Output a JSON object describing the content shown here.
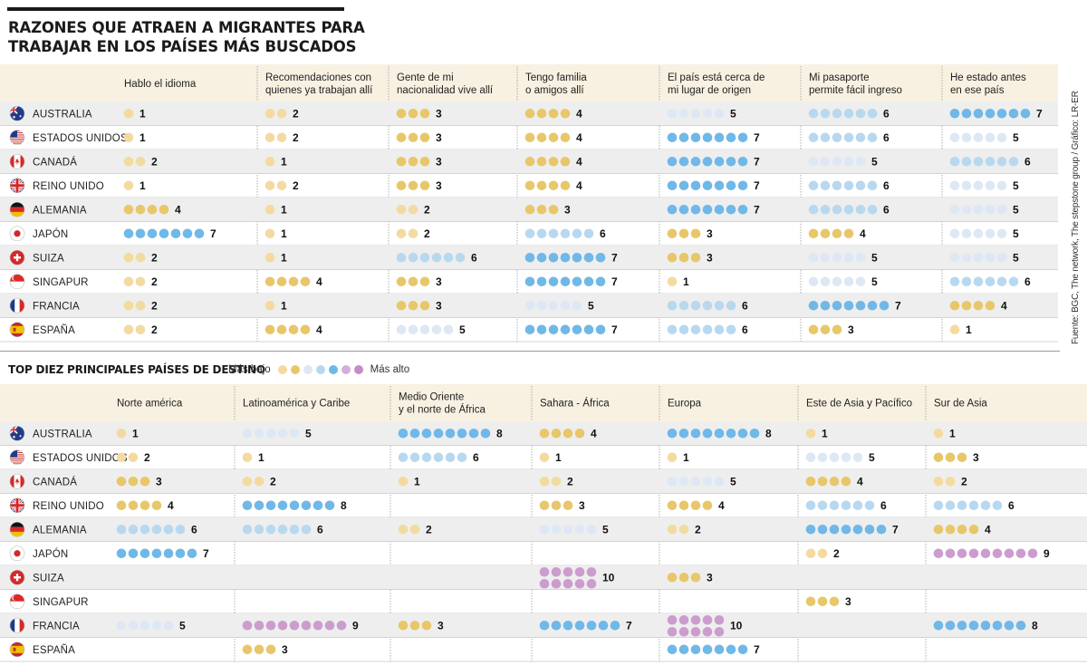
{
  "title_line1": "RAZONES QUE ATRAEN A MIGRANTES PARA",
  "title_line2": "TRABAJAR EN LOS PAÍSES MÁS BUSCADOS",
  "source": "Fuente: BGC, The network, The stepstone group / Gráfico: LR-ER",
  "section2_title": "TOP DIEZ PRINCIPALES PAÍSES DE DESTINO",
  "legend": {
    "low": "Más bajo",
    "high": "Más alto",
    "colors": [
      "#f3dba0",
      "#e8c76a",
      "#dde8f4",
      "#b8d8f0",
      "#6fb8e8",
      "#d4b0d8",
      "#c48cc8"
    ]
  },
  "colors": {
    "header_bg": "#f8f1e2",
    "row_bg": "#eeeeee",
    "yellow_light": "#f3dba0",
    "yellow": "#e8c76a",
    "blue_pale": "#dde8f4",
    "blue_light": "#b8d8f0",
    "blue": "#6fb8e8",
    "purple": "#cc9ccf"
  },
  "countries": [
    "AUSTRALIA",
    "ESTADOS UNIDOS",
    "CANADÁ",
    "REINO UNIDO",
    "ALEMANIA",
    "JAPÓN",
    "SUIZA",
    "SINGAPUR",
    "FRANCIA",
    "ESPAÑA"
  ],
  "country_flags": [
    "flag-australia-icon",
    "flag-usa-icon",
    "flag-canada-icon",
    "flag-uk-icon",
    "flag-germany-icon",
    "flag-japan-icon",
    "flag-switzerland-icon",
    "flag-singapore-icon",
    "flag-france-icon",
    "flag-spain-icon"
  ],
  "chart_data": [
    {
      "type": "table",
      "title": "RAZONES QUE ATRAEN A MIGRANTES PARA TRABAJAR EN LOS PAÍSES MÁS BUSCADOS",
      "columns": [
        [
          "Hablo el idioma"
        ],
        [
          "Recomendaciones con",
          "quienes ya trabajan allí"
        ],
        [
          "Gente de mi",
          "nacionalidad vive allí"
        ],
        [
          "Tengo familia",
          "o amigos allí"
        ],
        [
          "El país está cerca de",
          "mi lugar de origen"
        ],
        [
          "Mi pasaporte",
          "permite fácil ingreso"
        ],
        [
          "He estado antes",
          "en ese país"
        ]
      ],
      "rows": [
        "AUSTRALIA",
        "ESTADOS UNIDOS",
        "CANADÁ",
        "REINO UNIDO",
        "ALEMANIA",
        "JAPÓN",
        "SUIZA",
        "SINGAPUR",
        "FRANCIA",
        "ESPAÑA"
      ],
      "values": [
        [
          1,
          2,
          3,
          4,
          5,
          6,
          7
        ],
        [
          1,
          2,
          3,
          4,
          7,
          6,
          5
        ],
        [
          2,
          1,
          3,
          4,
          7,
          5,
          6
        ],
        [
          1,
          2,
          3,
          4,
          7,
          6,
          5
        ],
        [
          4,
          1,
          2,
          3,
          7,
          6,
          5
        ],
        [
          7,
          1,
          2,
          6,
          3,
          4,
          5
        ],
        [
          2,
          1,
          6,
          7,
          3,
          5,
          5
        ],
        [
          2,
          4,
          3,
          7,
          1,
          5,
          6
        ],
        [
          2,
          1,
          3,
          5,
          6,
          7,
          4
        ],
        [
          2,
          4,
          5,
          7,
          6,
          3,
          1
        ]
      ]
    },
    {
      "type": "table",
      "title": "TOP DIEZ PRINCIPALES PAÍSES DE DESTINO",
      "columns": [
        [
          "Norte américa"
        ],
        [
          "Latinoamérica y Caribe"
        ],
        [
          "Medio Oriente",
          "y el norte de África"
        ],
        [
          "Sahara - África"
        ],
        [
          "Europa"
        ],
        [
          "Este de Asia y Pacífico"
        ],
        [
          "Sur de Asia"
        ]
      ],
      "rows": [
        "AUSTRALIA",
        "ESTADOS UNIDOS",
        "CANADÁ",
        "REINO UNIDO",
        "ALEMANIA",
        "JAPÓN",
        "SUIZA",
        "SINGAPUR",
        "FRANCIA",
        "ESPAÑA"
      ],
      "values": [
        [
          1,
          5,
          8,
          4,
          8,
          1,
          1
        ],
        [
          2,
          1,
          6,
          1,
          1,
          5,
          3
        ],
        [
          3,
          2,
          1,
          2,
          5,
          4,
          2
        ],
        [
          4,
          8,
          null,
          3,
          4,
          6,
          6
        ],
        [
          6,
          6,
          2,
          5,
          2,
          7,
          4
        ],
        [
          7,
          null,
          null,
          null,
          null,
          2,
          9
        ],
        [
          null,
          null,
          null,
          10,
          3,
          null,
          null
        ],
        [
          null,
          null,
          null,
          null,
          null,
          3,
          null
        ],
        [
          5,
          9,
          3,
          7,
          10,
          null,
          8
        ],
        [
          null,
          3,
          null,
          null,
          7,
          null,
          null
        ]
      ]
    }
  ]
}
